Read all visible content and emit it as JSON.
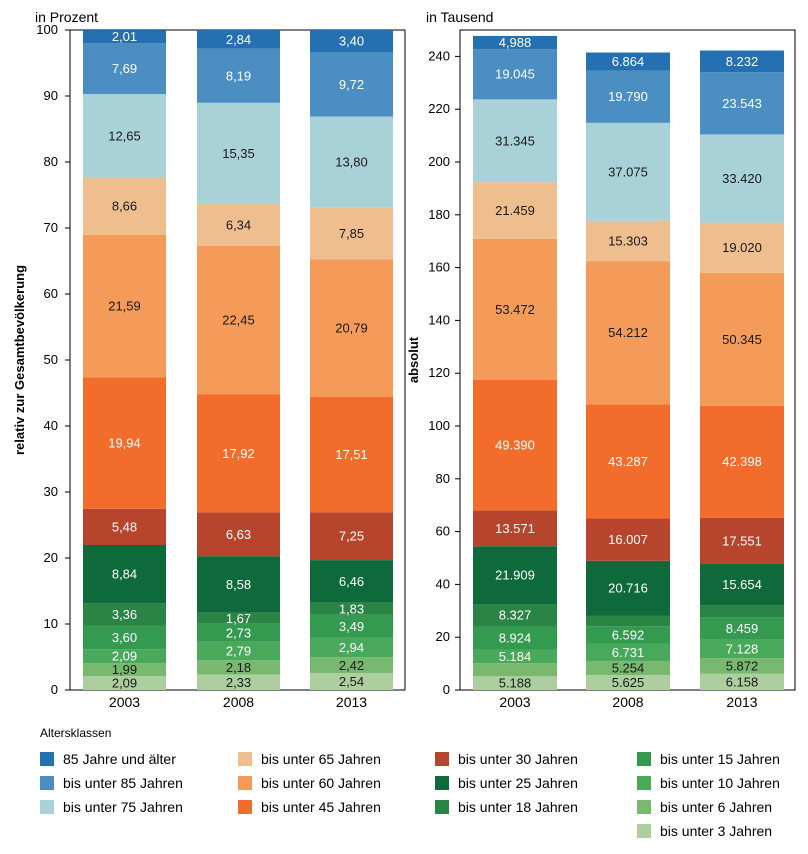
{
  "legend_title": "Altersklassen",
  "colors": {
    "85plus": "#2470b0",
    "u85": "#4b8fc2",
    "u75": "#a9d2d8",
    "u65": "#efbe8f",
    "u60": "#f49b5a",
    "u45": "#f26d2b",
    "u30": "#b7452d",
    "u25": "#0e6a3a",
    "u18": "#2a8446",
    "u15": "#349a4f",
    "u10": "#49a95a",
    "u6": "#78b96f",
    "u3": "#adcf9f"
  },
  "chart_data": [
    {
      "type": "bar",
      "stacked": true,
      "title": "in Prozent",
      "ylabel": "relativ zur Gesamtbevölkerung",
      "categories": [
        "2003",
        "2008",
        "2013"
      ],
      "ylim": [
        0,
        100
      ],
      "yticks": [
        0,
        10,
        20,
        30,
        40,
        50,
        60,
        70,
        80,
        90,
        100
      ],
      "series": [
        {
          "key": "u3",
          "name": "bis unter   3 Jahren",
          "values": [
            2.09,
            2.33,
            2.54
          ],
          "labels": [
            "2,09",
            "2,33",
            "2,54"
          ]
        },
        {
          "key": "u6",
          "name": "bis unter   6 Jahren",
          "values": [
            1.99,
            2.18,
            2.42
          ],
          "labels": [
            "1,99",
            "2,18",
            "2,42"
          ]
        },
        {
          "key": "u10",
          "name": "bis unter 10 Jahren",
          "values": [
            2.09,
            2.79,
            2.94
          ],
          "labels": [
            "2,09",
            "2,79",
            "2,94"
          ]
        },
        {
          "key": "u15",
          "name": "bis unter 15 Jahren",
          "values": [
            3.6,
            2.73,
            3.49
          ],
          "labels": [
            "3,60",
            "2,73",
            "3,49"
          ]
        },
        {
          "key": "u18",
          "name": "bis unter 18 Jahren",
          "values": [
            3.36,
            1.67,
            1.83
          ],
          "labels": [
            "3,36",
            "1,67",
            "1,83"
          ]
        },
        {
          "key": "u25",
          "name": "bis unter 25 Jahren",
          "values": [
            8.84,
            8.58,
            6.46
          ],
          "labels": [
            "8,84",
            "8,58",
            "6,46"
          ]
        },
        {
          "key": "u30",
          "name": "bis unter 30 Jahren",
          "values": [
            5.48,
            6.63,
            7.25
          ],
          "labels": [
            "5,48",
            "6,63",
            "7,25"
          ]
        },
        {
          "key": "u45",
          "name": "bis unter 45 Jahren",
          "values": [
            19.94,
            17.92,
            17.51
          ],
          "labels": [
            "19,94",
            "17,92",
            "17,51"
          ]
        },
        {
          "key": "u60",
          "name": "bis unter 60 Jahren",
          "values": [
            21.59,
            22.45,
            20.79
          ],
          "labels": [
            "21,59",
            "22,45",
            "20,79"
          ]
        },
        {
          "key": "u65",
          "name": "bis unter 65 Jahren",
          "values": [
            8.66,
            6.34,
            7.85
          ],
          "labels": [
            "8,66",
            "6,34",
            "7,85"
          ]
        },
        {
          "key": "u75",
          "name": "bis unter 75 Jahren",
          "values": [
            12.65,
            15.35,
            13.8
          ],
          "labels": [
            "12,65",
            "15,35",
            "13,80"
          ]
        },
        {
          "key": "u85",
          "name": "bis unter 85 Jahren",
          "values": [
            7.69,
            8.19,
            9.72
          ],
          "labels": [
            "7,69",
            "8,19",
            "9,72"
          ]
        },
        {
          "key": "85plus",
          "name": "85 Jahre und älter",
          "values": [
            2.01,
            2.84,
            3.4
          ],
          "labels": [
            "2,01",
            "2,84",
            "3,40"
          ]
        }
      ]
    },
    {
      "type": "bar",
      "stacked": true,
      "title": "in Tausend",
      "ylabel": "absolut",
      "categories": [
        "2003",
        "2008",
        "2013"
      ],
      "ylim": [
        0,
        250
      ],
      "yticks": [
        0,
        20,
        40,
        60,
        80,
        100,
        120,
        140,
        160,
        180,
        200,
        220,
        240
      ],
      "series": [
        {
          "key": "u3",
          "name": "bis unter   3 Jahren",
          "values": [
            5.188,
            5.625,
            6.158
          ],
          "labels": [
            "5.188",
            "5.625",
            "6.158"
          ]
        },
        {
          "key": "u6",
          "name": "bis unter   6 Jahren",
          "values": [
            4.948,
            5.254,
            5.872
          ],
          "labels": [
            "",
            "5.254",
            "5.872"
          ]
        },
        {
          "key": "u10",
          "name": "bis unter 10 Jahren",
          "values": [
            5.184,
            6.731,
            7.128
          ],
          "labels": [
            "5.184",
            "6.731",
            "7.128"
          ]
        },
        {
          "key": "u15",
          "name": "bis unter 15 Jahren",
          "values": [
            8.924,
            6.592,
            8.459
          ],
          "labels": [
            "8.924",
            "6.592",
            "8.459"
          ]
        },
        {
          "key": "u18",
          "name": "bis unter 18 Jahren",
          "values": [
            8.327,
            4.019,
            4.444
          ],
          "labels": [
            "8.327",
            "",
            ""
          ]
        },
        {
          "key": "u25",
          "name": "bis unter 25 Jahren",
          "values": [
            21.909,
            20.716,
            15.654
          ],
          "labels": [
            "21.909",
            "20.716",
            "15.654"
          ]
        },
        {
          "key": "u30",
          "name": "bis unter 30 Jahren",
          "values": [
            13.571,
            16.007,
            17.551
          ],
          "labels": [
            "13.571",
            "16.007",
            "17.551"
          ]
        },
        {
          "key": "u45",
          "name": "bis unter 45 Jahren",
          "values": [
            49.39,
            43.287,
            42.398
          ],
          "labels": [
            "49.390",
            "43.287",
            "42.398"
          ]
        },
        {
          "key": "u60",
          "name": "bis unter 60 Jahren",
          "values": [
            53.472,
            54.212,
            50.345
          ],
          "labels": [
            "53.472",
            "54.212",
            "50.345"
          ]
        },
        {
          "key": "u65",
          "name": "bis unter 65 Jahren",
          "values": [
            21.459,
            15.303,
            19.02
          ],
          "labels": [
            "21.459",
            "15.303",
            "19.020"
          ]
        },
        {
          "key": "u75",
          "name": "bis unter 75 Jahren",
          "values": [
            31.345,
            37.075,
            33.42
          ],
          "labels": [
            "31.345",
            "37.075",
            "33.420"
          ]
        },
        {
          "key": "u85",
          "name": "bis unter 85 Jahren",
          "values": [
            19.045,
            19.79,
            23.543
          ],
          "labels": [
            "19.045",
            "19.790",
            "23.543"
          ]
        },
        {
          "key": "85plus",
          "name": "85 Jahre und älter",
          "values": [
            4.988,
            6.864,
            8.232
          ],
          "labels": [
            "4,988",
            "6.864",
            "8.232"
          ]
        }
      ]
    }
  ],
  "legend": [
    [
      "85plus",
      "u85",
      "u75"
    ],
    [
      "u65",
      "u60",
      "u45"
    ],
    [
      "u30",
      "u25",
      "u18"
    ],
    [
      "u15",
      "u10",
      "u6",
      "u3"
    ]
  ]
}
